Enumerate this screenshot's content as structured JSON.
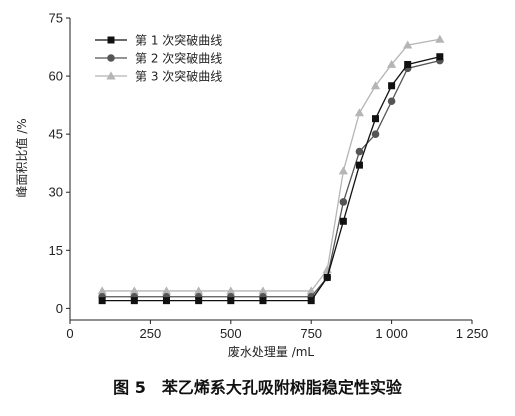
{
  "chart_data": {
    "type": "line",
    "title": "",
    "xlabel": "废水处理量 /mL",
    "ylabel": "峰面积比值 /%",
    "xlim": [
      0,
      1250
    ],
    "ylim": [
      -3,
      75
    ],
    "xticks": [
      0,
      250,
      500,
      750,
      1000,
      1250
    ],
    "xtick_labels": [
      "0",
      "250",
      "500",
      "750",
      "1 000",
      "1 250"
    ],
    "yticks": [
      0,
      15,
      30,
      45,
      60,
      75
    ],
    "ytick_labels": [
      "0",
      "15",
      "30",
      "45",
      "60",
      "75"
    ],
    "grid": false,
    "legend_position": "top-left",
    "series": [
      {
        "name": "第 1 次突破曲线",
        "marker": "square",
        "color": "#111111",
        "x": [
          100,
          200,
          300,
          400,
          500,
          600,
          750,
          800,
          850,
          900,
          950,
          1000,
          1050,
          1150
        ],
        "y": [
          2,
          2,
          2,
          2,
          2,
          2,
          2,
          8,
          22.5,
          37,
          49,
          57.5,
          63,
          65
        ]
      },
      {
        "name": "第 2 次突破曲线",
        "marker": "circle",
        "color": "#555555",
        "x": [
          100,
          200,
          300,
          400,
          500,
          600,
          750,
          800,
          850,
          900,
          950,
          1000,
          1050,
          1150
        ],
        "y": [
          3,
          3,
          3,
          3,
          3,
          3,
          3,
          8,
          27.5,
          40.5,
          45,
          53.5,
          62,
          64
        ]
      },
      {
        "name": "第 3 次突破曲线",
        "marker": "triangle",
        "color": "#b5b5b5",
        "x": [
          100,
          200,
          300,
          400,
          500,
          600,
          750,
          800,
          850,
          900,
          950,
          1000,
          1050,
          1150
        ],
        "y": [
          4.5,
          4.5,
          4.5,
          4.5,
          4.5,
          4.5,
          4.5,
          10,
          35.5,
          50.5,
          57.5,
          63,
          68,
          69.5
        ]
      }
    ]
  },
  "caption": "图 5　苯乙烯系大孔吸附树脂稳定性实验"
}
